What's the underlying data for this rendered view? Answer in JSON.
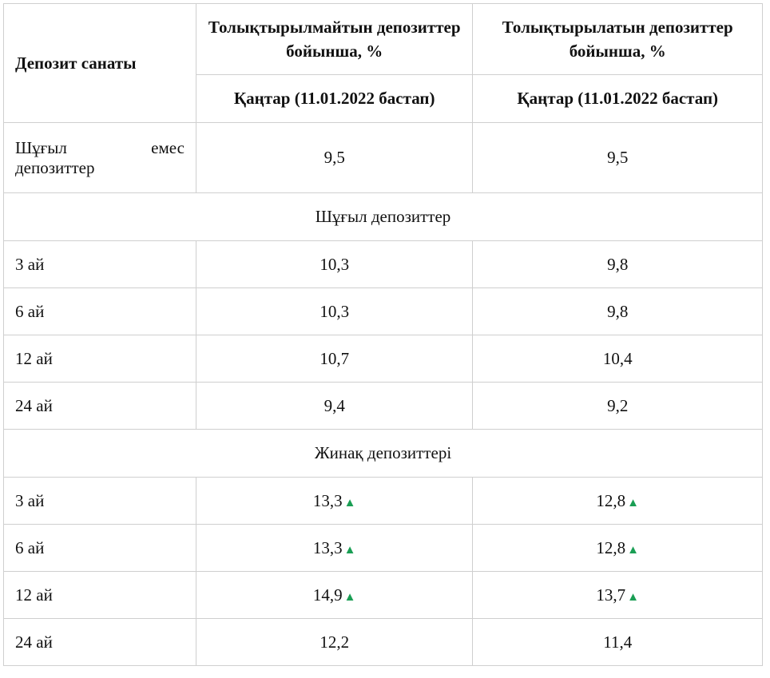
{
  "header": {
    "category_label": "Депозит санаты",
    "col_nonreplenishable": "Толықтырылмайтын депозиттер бойынша, %",
    "col_replenishable": "Толықтырылатын депозиттер бойынша, %",
    "period_nonreplenishable": "Қаңтар (11.01.2022 бастап)",
    "period_replenishable": "Қаңтар (11.01.2022 бастап)"
  },
  "nonurgent": {
    "label_line1": "Шұғыл емес",
    "label_line2": "депозиттер",
    "nonreplenishable": "9,5",
    "replenishable": "9,5"
  },
  "urgent_section": "Шұғыл депозиттер",
  "urgent_rows": [
    {
      "term": "3 ай",
      "nonreplenishable": "10,3",
      "replenishable": "9,8"
    },
    {
      "term": "6 ай",
      "nonreplenishable": "10,3",
      "replenishable": "9,8"
    },
    {
      "term": "12 ай",
      "nonreplenishable": "10,7",
      "replenishable": "10,4"
    },
    {
      "term": "24 ай",
      "nonreplenishable": "9,4",
      "replenishable": "9,2"
    }
  ],
  "savings_section": "Жинақ депозиттері",
  "savings_rows": [
    {
      "term": "3 ай",
      "nonreplenishable": "13,3",
      "replenishable": "12,8"
    },
    {
      "term": "6 ай",
      "nonreplenishable": "13,3",
      "replenishable": "12,8"
    },
    {
      "term": "12 ай",
      "nonreplenishable": "14,9",
      "replenishable": "13,7"
    },
    {
      "term": "24 ай",
      "nonreplenishable": "12,2",
      "replenishable": "11,4"
    }
  ],
  "indicators": {
    "up_icon": "green-up-triangle",
    "up_glyph": "▲",
    "up_color": "#1a9e54"
  }
}
